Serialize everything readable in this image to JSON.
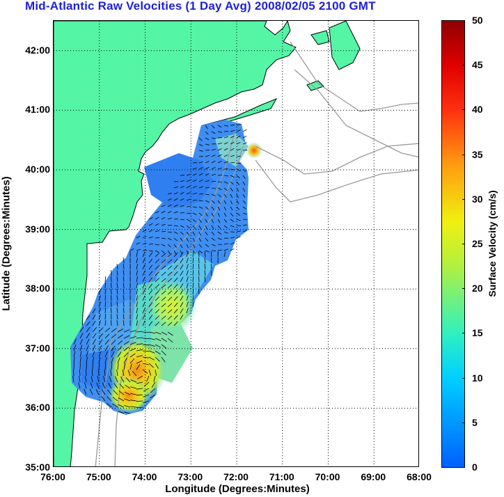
{
  "title": "Mid-Atlantic Raw Velocities (1 Day Avg) 2008/02/05 2100 GMT",
  "chart_data": {
    "type": "heatmap",
    "title": "Mid-Atlantic Raw Velocities (1 Day Avg) 2008/02/05 2100 GMT",
    "xlabel": "Longitude (Degrees:Minutes)",
    "ylabel": "Latitude (Degrees:Minutes)",
    "xlim": [
      -76,
      -68
    ],
    "ylim": [
      35,
      42.5
    ],
    "x_ticks": [
      "76:00",
      "75:00",
      "74:00",
      "73:00",
      "72:00",
      "71:00",
      "70:00",
      "69:00",
      "68:00"
    ],
    "y_ticks": [
      "42:00",
      "41:00",
      "40:00",
      "39:00",
      "38:00",
      "37:00",
      "36:00",
      "35:00"
    ],
    "grid": true,
    "colorbar": {
      "label": "Surface Velocity (cm/s)",
      "range": [
        0,
        50
      ],
      "ticks": [
        "50",
        "45",
        "40",
        "35",
        "30",
        "25",
        "20",
        "15",
        "10",
        "5",
        "0"
      ]
    }
  },
  "colors": {
    "land": "#55f5a6",
    "title": "#1f1fd6",
    "coast": "#000000",
    "bathymetry": "#999999"
  }
}
